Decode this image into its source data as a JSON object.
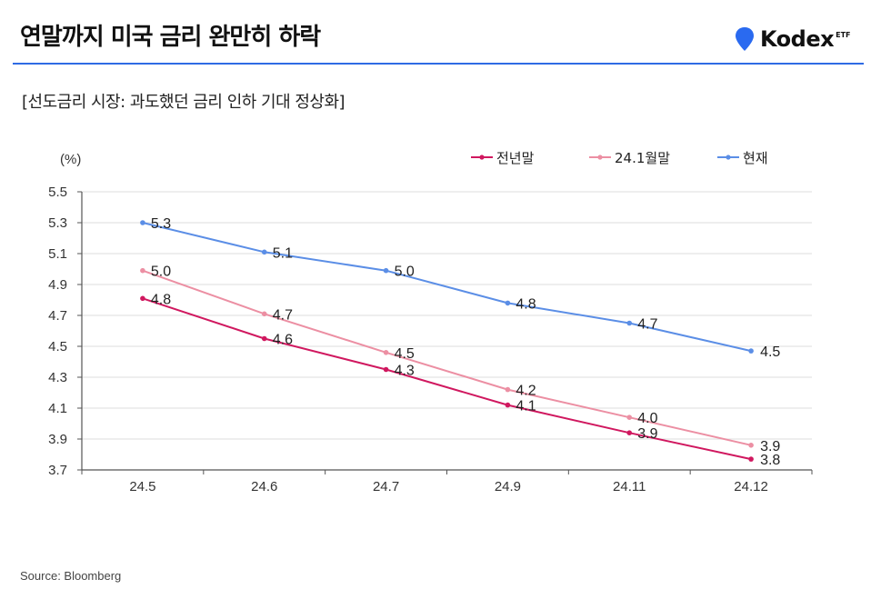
{
  "header": {
    "title": "연말까지 미국 금리 완만히 하락",
    "logo_text": "Kodex",
    "logo_suffix": "ETF",
    "logo_icon": "location-pin-icon",
    "accent_color": "#2f6be4"
  },
  "subtitle": "[선도금리 시장: 과도했던 금리 인하 기대 정상화]",
  "source": "Source: Bloomberg",
  "chart_data": {
    "type": "line",
    "title": "연말까지 미국 금리 완만히 하락",
    "subtitle": "[선도금리 시장: 과도했던 금리 인하 기대 정상화]",
    "xlabel": "",
    "ylabel": "(%)",
    "categories": [
      "24.5",
      "24.6",
      "24.7",
      "24.9",
      "24.11",
      "24.12"
    ],
    "ylim": [
      3.7,
      5.5
    ],
    "yticks": [
      "5.5",
      "5.3",
      "5.1",
      "4.9",
      "4.7",
      "4.5",
      "4.3",
      "4.1",
      "3.9",
      "3.7"
    ],
    "ytick_values": [
      5.5,
      5.3,
      5.1,
      4.9,
      4.7,
      4.5,
      4.3,
      4.1,
      3.9,
      3.7
    ],
    "grid": true,
    "legend_position": "top-right",
    "series": [
      {
        "name": "전년말",
        "color": "#d0185f",
        "values": [
          4.81,
          4.55,
          4.35,
          4.12,
          3.94,
          3.77
        ],
        "labels": [
          "4.8",
          "4.6",
          "4.3",
          "4.1",
          "3.9",
          "3.8"
        ]
      },
      {
        "name": "24.1월말",
        "color": "#ec8fa3",
        "values": [
          4.99,
          4.71,
          4.46,
          4.22,
          4.04,
          3.86
        ],
        "labels": [
          "5.0",
          "4.7",
          "4.5",
          "4.2",
          "4.0",
          "3.9"
        ]
      },
      {
        "name": "현재",
        "color": "#5b8ee6",
        "values": [
          5.3,
          5.11,
          4.99,
          4.78,
          4.65,
          4.47
        ],
        "labels": [
          "5.3",
          "5.1",
          "5.0",
          "4.8",
          "4.7",
          "4.5"
        ]
      }
    ]
  }
}
